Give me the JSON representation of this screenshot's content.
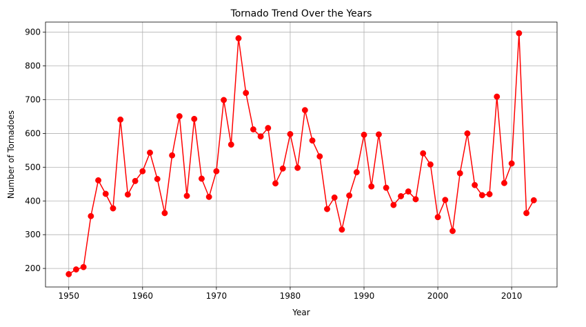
{
  "chart_data": {
    "type": "line",
    "title": "Tornado Trend Over the Years",
    "xlabel": "Year",
    "ylabel": "Number of Tornadoes",
    "xlim": [
      1946.85,
      2016.15
    ],
    "ylim": [
      145,
      930
    ],
    "xticks": [
      1950,
      1960,
      1970,
      1980,
      1990,
      2000,
      2010
    ],
    "yticks": [
      200,
      300,
      400,
      500,
      600,
      700,
      800,
      900
    ],
    "grid": true,
    "line_color": "#ff0000",
    "marker": "circle",
    "series": [
      {
        "x": [
          1950,
          1951,
          1952,
          1953,
          1954,
          1955,
          1956,
          1957,
          1958,
          1959,
          1960,
          1961,
          1962,
          1963,
          1964,
          1965,
          1966,
          1967,
          1968,
          1969,
          1970,
          1971,
          1972,
          1973,
          1974,
          1975,
          1976,
          1977,
          1978,
          1979,
          1980,
          1981,
          1982,
          1983,
          1984,
          1985,
          1986,
          1987,
          1988,
          1989,
          1990,
          1991,
          1992,
          1993,
          1994,
          1995,
          1996,
          1997,
          1998,
          1999,
          2000,
          2001,
          2002,
          2003,
          2004,
          2005,
          2006,
          2007,
          2008,
          2009,
          2010,
          2011,
          2012,
          2013
        ],
        "y": [
          183,
          197,
          204,
          355,
          461,
          421,
          378,
          641,
          419,
          459,
          488,
          543,
          465,
          364,
          535,
          651,
          415,
          643,
          466,
          412,
          488,
          699,
          567,
          882,
          720,
          612,
          591,
          616,
          452,
          496,
          598,
          498,
          669,
          579,
          532,
          376,
          410,
          315,
          416,
          485,
          596,
          443,
          597,
          439,
          388,
          414,
          428,
          405,
          541,
          508,
          352,
          403,
          311,
          482,
          600,
          447,
          417,
          420,
          709,
          453,
          511,
          897,
          364,
          402
        ]
      }
    ]
  }
}
